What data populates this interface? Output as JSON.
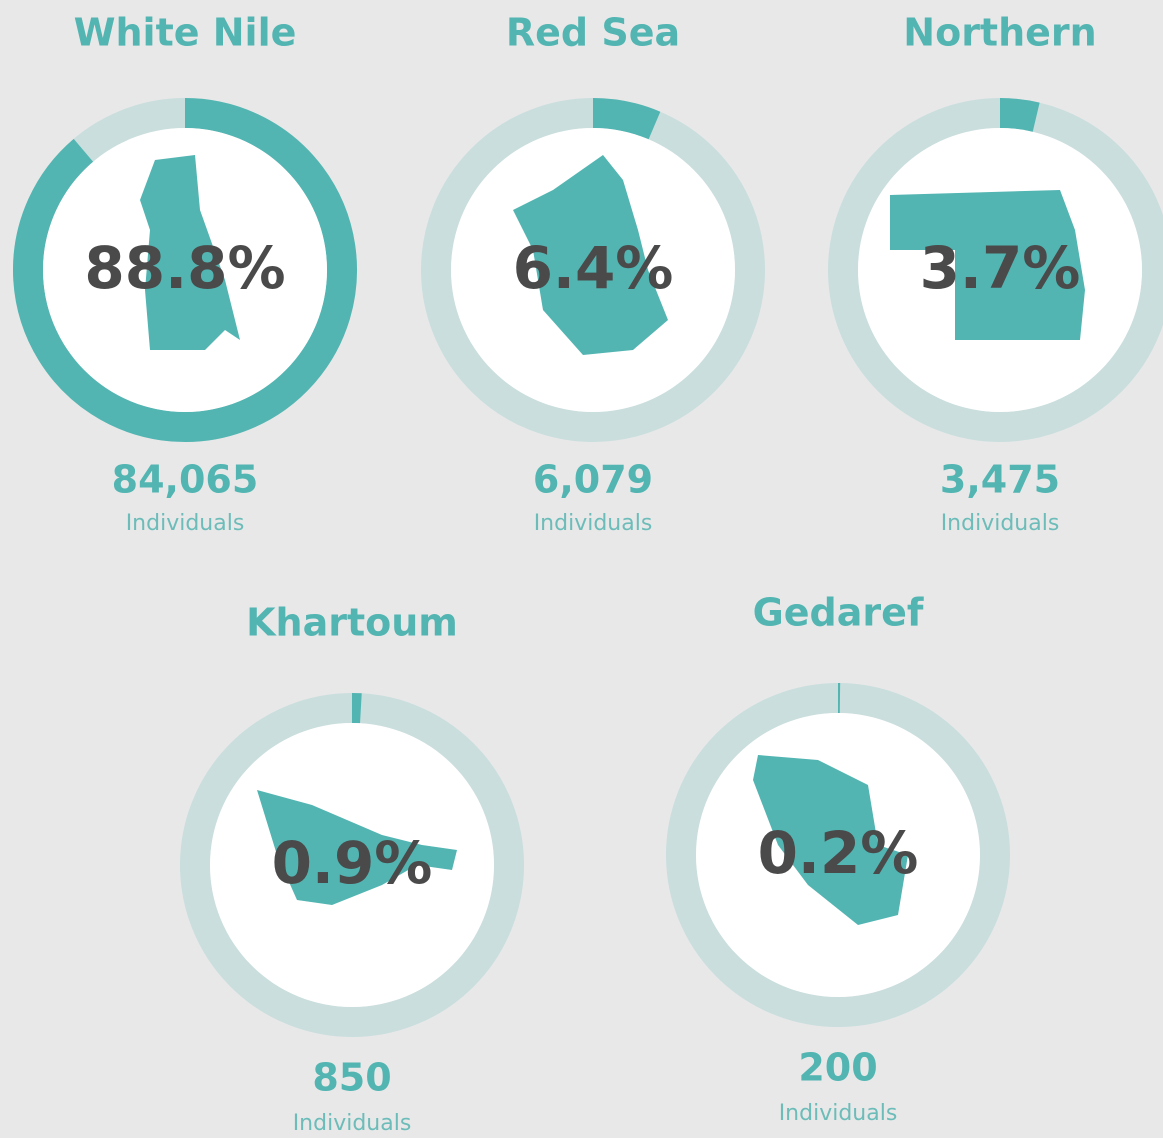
{
  "chart_data": {
    "type": "gauge",
    "categories": [
      "White Nile",
      "Red Sea",
      "Northern",
      "Khartoum",
      "Gedaref"
    ],
    "values": [
      88.8,
      6.4,
      3.7,
      0.9,
      0.2
    ],
    "value_labels": [
      "88.8%",
      "6.4%",
      "3.7%",
      "0.9%",
      "0.2%"
    ],
    "count_labels": [
      "84,065",
      "6,079",
      "3,475",
      "850",
      "200"
    ],
    "unit": "Individuals",
    "ylim": [
      0,
      100
    ],
    "color": "#52b5b2",
    "track_color": "#c9dedd"
  }
}
